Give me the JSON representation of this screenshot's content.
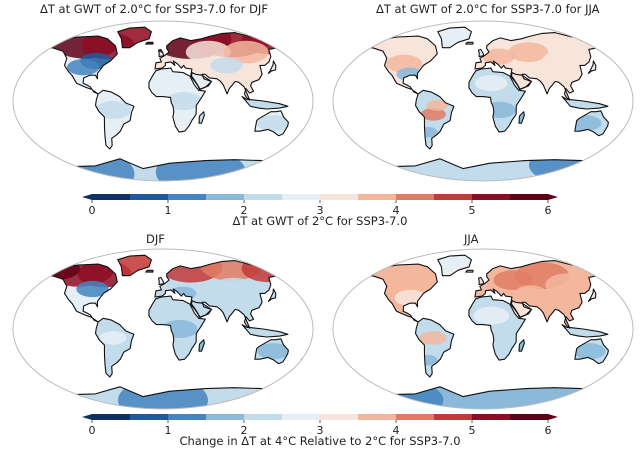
{
  "panels": [
    {
      "title": "ΔT at GWT of 2.0°C for SSP3-7.0 for DJF",
      "season": "DJF",
      "row": "top"
    },
    {
      "title": "ΔT at GWT of 2.0°C for SSP3-7.0 for JJA",
      "season": "JJA",
      "row": "top"
    },
    {
      "title": "DJF",
      "season": "DJF",
      "row": "bottom"
    },
    {
      "title": "JJA",
      "season": "JJA",
      "row": "bottom"
    }
  ],
  "colorbar_top": {
    "label": "ΔT at GWT of 2°C for SSP3-7.0",
    "ticks": [
      "0",
      "1",
      "2",
      "3",
      "4",
      "5",
      "6"
    ],
    "range": [
      0,
      6
    ],
    "extend": "both"
  },
  "colorbar_bottom": {
    "label": "Change in ΔT at 4°C Relative to 2°C for SSP3-7.0",
    "ticks": [
      "0",
      "1",
      "2",
      "3",
      "4",
      "5",
      "6"
    ],
    "range": [
      0,
      6
    ],
    "extend": "both"
  },
  "colors": {
    "levels": [
      "#0d3163",
      "#1f5a9c",
      "#4484c0",
      "#8ab9da",
      "#c3dcec",
      "#e6eff6",
      "#f7e4db",
      "#f3b79e",
      "#e07c64",
      "#c2393a",
      "#8e0d24",
      "#5f0017"
    ],
    "ocean": "#ffffff",
    "coastline": "#111111",
    "globe_outline": "#bbbbbb"
  }
}
